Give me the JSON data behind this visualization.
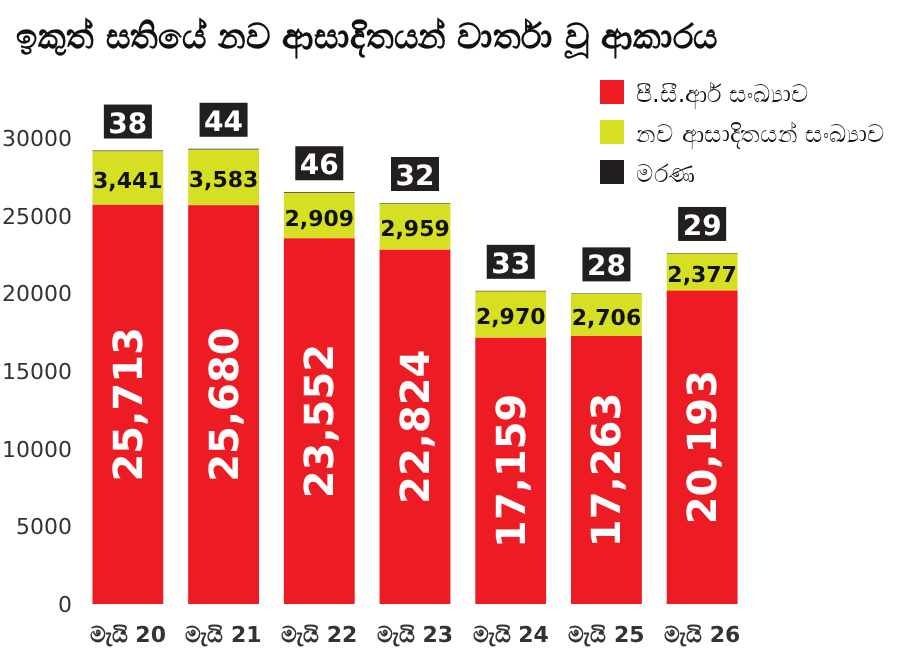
{
  "chart_data": {
    "type": "bar",
    "title": "ඉකුත් සතියේ නව ආසාදිතයන් වාර්තා වූ ආකාරය",
    "categories": [
      "මැයි 20",
      "මැයි 21",
      "මැයි 22",
      "මැයි 23",
      "මැයි 24",
      "මැයි 25",
      "මැයි 26"
    ],
    "stacked": true,
    "legend": "top right",
    "grid": false,
    "ylim": [
      0,
      30000
    ],
    "yticks": [
      0,
      5000,
      10000,
      15000,
      20000,
      25000,
      30000
    ],
    "series": [
      {
        "name": "පී.සී.ආර් සංඛ්‍යාව",
        "color": "#ed1c24",
        "values": [
          25713,
          25680,
          23552,
          22824,
          17159,
          17263,
          20193
        ],
        "value_labels": [
          "25,713",
          "25,680",
          "23,552",
          "22,824",
          "17,159",
          "17,263",
          "20,193"
        ]
      },
      {
        "name": "නව ආසාදිතයන් සංඛ්‍යාව",
        "color": "#d7df23",
        "values": [
          3441,
          3583,
          2909,
          2959,
          2970,
          2706,
          2377
        ],
        "value_labels": [
          "3,441",
          "3,583",
          "2,909",
          "2,959",
          "2,970",
          "2,706",
          "2,377"
        ]
      },
      {
        "name": "මරණ",
        "color": "#231f20",
        "values": [
          38,
          44,
          46,
          32,
          33,
          28,
          29
        ],
        "value_labels": [
          "38",
          "44",
          "46",
          "32",
          "33",
          "28",
          "29"
        ]
      }
    ]
  }
}
